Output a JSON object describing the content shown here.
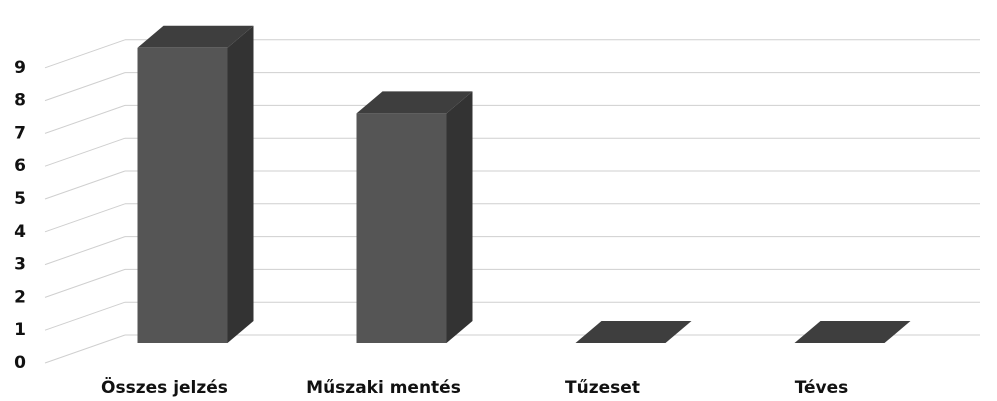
{
  "chart_data": {
    "type": "bar3d",
    "categories": [
      "Összes jelzés",
      "Műszaki mentés",
      "Tűzeset",
      "Téves"
    ],
    "values": [
      9,
      7,
      0,
      0
    ],
    "color": "#555555",
    "ylim": [
      0,
      9
    ],
    "yticks": [
      0,
      1,
      2,
      3,
      4,
      5,
      6,
      7,
      8,
      9
    ],
    "grid": true
  }
}
